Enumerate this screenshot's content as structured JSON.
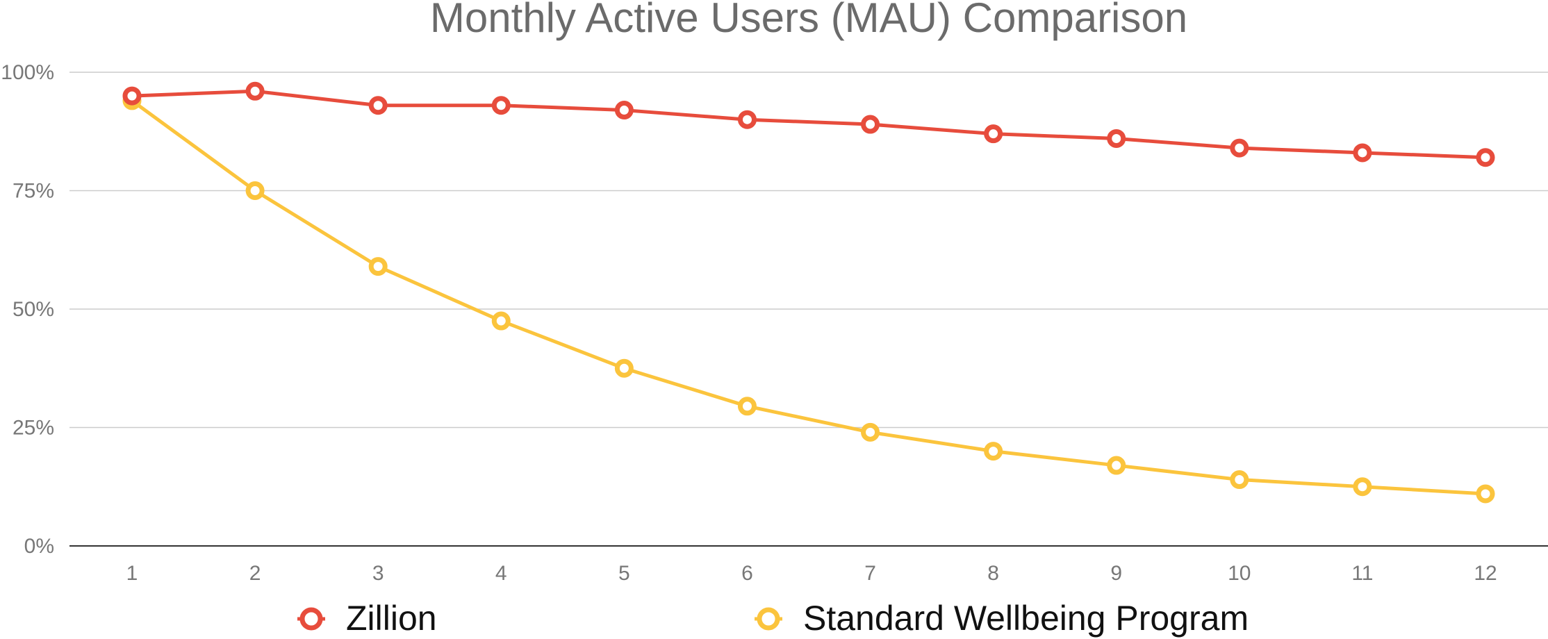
{
  "chart_data": {
    "type": "line",
    "title": "Monthly Active Users (MAU) Comparison",
    "xlabel": "",
    "ylabel": "",
    "x": [
      1,
      2,
      3,
      4,
      5,
      6,
      7,
      8,
      9,
      10,
      11,
      12
    ],
    "x_tick_labels": [
      "1",
      "2",
      "3",
      "4",
      "5",
      "6",
      "7",
      "8",
      "9",
      "10",
      "11",
      "12"
    ],
    "ylim": [
      0,
      100
    ],
    "y_ticks": [
      0,
      25,
      50,
      75,
      100
    ],
    "y_tick_labels": [
      "0%",
      "25%",
      "50%",
      "75%",
      "100%"
    ],
    "grid": true,
    "legend_position": "bottom",
    "series": [
      {
        "name": "Zillion",
        "color": "#e74c3c",
        "values": [
          95,
          96,
          93,
          93,
          92,
          90,
          89,
          87,
          86,
          84,
          83,
          82
        ]
      },
      {
        "name": "Standard Wellbeing Program",
        "color": "#fbc43d",
        "values": [
          94,
          75,
          59,
          47.5,
          37.5,
          29.5,
          24,
          20,
          17,
          14,
          12.5,
          11
        ]
      }
    ]
  }
}
